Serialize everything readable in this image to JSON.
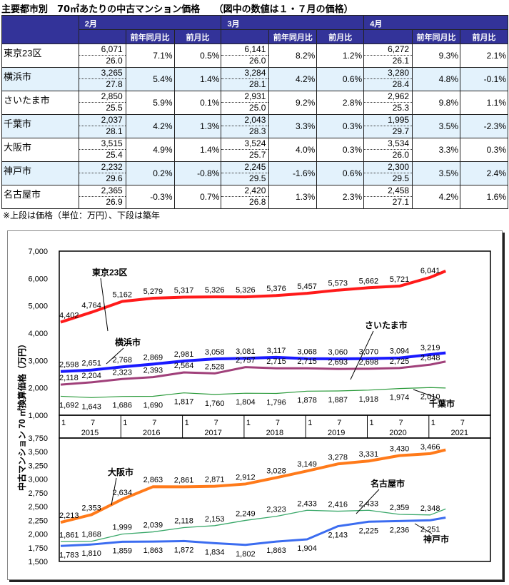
{
  "title": "主要都市別　70㎡あたりの中古マンション価格　　（図中の数値は１・７月の価格）",
  "table": {
    "months": [
      "2月",
      "3月",
      "4月"
    ],
    "sub_headers": [
      "前年同月比",
      "前月比"
    ],
    "rows": [
      {
        "city": "東京23区",
        "m": [
          {
            "price": "6,071",
            "age": "26.0",
            "yoy": "7.1%",
            "mom": "0.5%"
          },
          {
            "price": "6,141",
            "age": "26.0",
            "yoy": "8.2%",
            "mom": "1.2%"
          },
          {
            "price": "6,272",
            "age": "26.1",
            "yoy": "9.3%",
            "mom": "2.1%"
          }
        ]
      },
      {
        "city": "横浜市",
        "m": [
          {
            "price": "3,265",
            "age": "27.8",
            "yoy": "5.4%",
            "mom": "1.4%"
          },
          {
            "price": "3,284",
            "age": "28.1",
            "yoy": "4.2%",
            "mom": "0.6%"
          },
          {
            "price": "3,280",
            "age": "28.4",
            "yoy": "4.8%",
            "mom": "-0.1%"
          }
        ]
      },
      {
        "city": "さいたま市",
        "m": [
          {
            "price": "2,850",
            "age": "25.5",
            "yoy": "5.9%",
            "mom": "0.1%"
          },
          {
            "price": "2,931",
            "age": "25.0",
            "yoy": "9.2%",
            "mom": "2.8%"
          },
          {
            "price": "2,962",
            "age": "25.3",
            "yoy": "9.8%",
            "mom": "1.1%"
          }
        ]
      },
      {
        "city": "千葉市",
        "m": [
          {
            "price": "2,037",
            "age": "28.1",
            "yoy": "4.2%",
            "mom": "1.3%"
          },
          {
            "price": "2,043",
            "age": "28.3",
            "yoy": "3.3%",
            "mom": "0.3%"
          },
          {
            "price": "1,995",
            "age": "29.7",
            "yoy": "3.5%",
            "mom": "-2.3%"
          }
        ]
      },
      {
        "city": "大阪市",
        "m": [
          {
            "price": "3,515",
            "age": "25.4",
            "yoy": "4.9%",
            "mom": "1.4%"
          },
          {
            "price": "3,524",
            "age": "25.7",
            "yoy": "4.0%",
            "mom": "0.3%"
          },
          {
            "price": "3,534",
            "age": "26.0",
            "yoy": "3.3%",
            "mom": "0.3%"
          }
        ]
      },
      {
        "city": "神戸市",
        "m": [
          {
            "price": "2,232",
            "age": "29.6",
            "yoy": "0.2%",
            "mom": "-0.8%"
          },
          {
            "price": "2,245",
            "age": "29.5",
            "yoy": "-1.6%",
            "mom": "0.6%"
          },
          {
            "price": "2,300",
            "age": "29.5",
            "yoy": "3.5%",
            "mom": "2.4%"
          }
        ]
      },
      {
        "city": "名古屋市",
        "m": [
          {
            "price": "2,365",
            "age": "26.9",
            "yoy": "-0.3%",
            "mom": "0.7%"
          },
          {
            "price": "2,420",
            "age": "26.8",
            "yoy": "1.3%",
            "mom": "2.3%"
          },
          {
            "price": "2,458",
            "age": "27.1",
            "yoy": "4.2%",
            "mom": "1.6%"
          }
        ]
      }
    ]
  },
  "note": "※上段は価格（単位：万円）、下段は築年",
  "chart_data": [
    {
      "type": "line",
      "title": "",
      "ylabel": "中古マンション 70 ㎡換算価格（万円）",
      "ylim": [
        1000,
        7000
      ],
      "yticks": [
        1000,
        2000,
        3000,
        4000,
        5000,
        6000,
        7000
      ],
      "x_months": [
        0,
        6,
        12,
        18,
        24,
        30,
        36,
        42,
        48,
        54,
        60,
        66,
        72,
        75
      ],
      "x_tick_labels": [
        "1",
        "7"
      ],
      "years": [
        "2015",
        "2016",
        "2017",
        "2018",
        "2019",
        "2020",
        "2021"
      ],
      "series": [
        {
          "name": "東京23区",
          "color": "#ff1a1a",
          "values": [
            4402,
            4764,
            5162,
            5279,
            5317,
            5326,
            5326,
            5376,
            5457,
            5573,
            5662,
            5721,
            6041,
            6272
          ]
        },
        {
          "name": "横浜市",
          "color": "#1a1aff",
          "values": [
            2598,
            2651,
            2768,
            2869,
            2981,
            3058,
            3081,
            3117,
            3068,
            3060,
            3070,
            3094,
            3219,
            3280
          ]
        },
        {
          "name": "さいたま市",
          "color": "#a0407a",
          "values": [
            2118,
            2204,
            2323,
            2393,
            2564,
            2528,
            2757,
            2715,
            2715,
            2693,
            2698,
            2725,
            2848,
            2962
          ]
        },
        {
          "name": "千葉市",
          "color": "#2a9a3a",
          "values": [
            1692,
            1643,
            1686,
            1690,
            1817,
            1760,
            1804,
            1796,
            1878,
            1887,
            1918,
            1974,
            2010,
            1995
          ]
        }
      ]
    },
    {
      "type": "line",
      "ylim": [
        1500,
        3750
      ],
      "yticks": [
        1500,
        1750,
        2000,
        2250,
        2500,
        2750,
        3000,
        3250,
        3500,
        3750
      ],
      "x_months": [
        0,
        6,
        12,
        18,
        24,
        30,
        36,
        42,
        48,
        54,
        60,
        66,
        72,
        75
      ],
      "series": [
        {
          "name": "大阪市",
          "color": "#ff7a1a",
          "values": [
            2213,
            2353,
            2634,
            2863,
            2861,
            2871,
            2912,
            3028,
            3149,
            3278,
            3331,
            3430,
            3466,
            3534
          ]
        },
        {
          "name": "名古屋市",
          "color": "#3aa86a",
          "values": [
            1861,
            1868,
            1999,
            2039,
            2118,
            2153,
            2249,
            2323,
            2433,
            2416,
            2433,
            2359,
            2348,
            2458
          ]
        },
        {
          "name": "神戸市",
          "color": "#3b6cf0",
          "values": [
            1783,
            1810,
            1859,
            1863,
            1872,
            1834,
            1802,
            1863,
            1904,
            2143,
            2225,
            2236,
            2251,
            2300
          ]
        }
      ]
    }
  ]
}
